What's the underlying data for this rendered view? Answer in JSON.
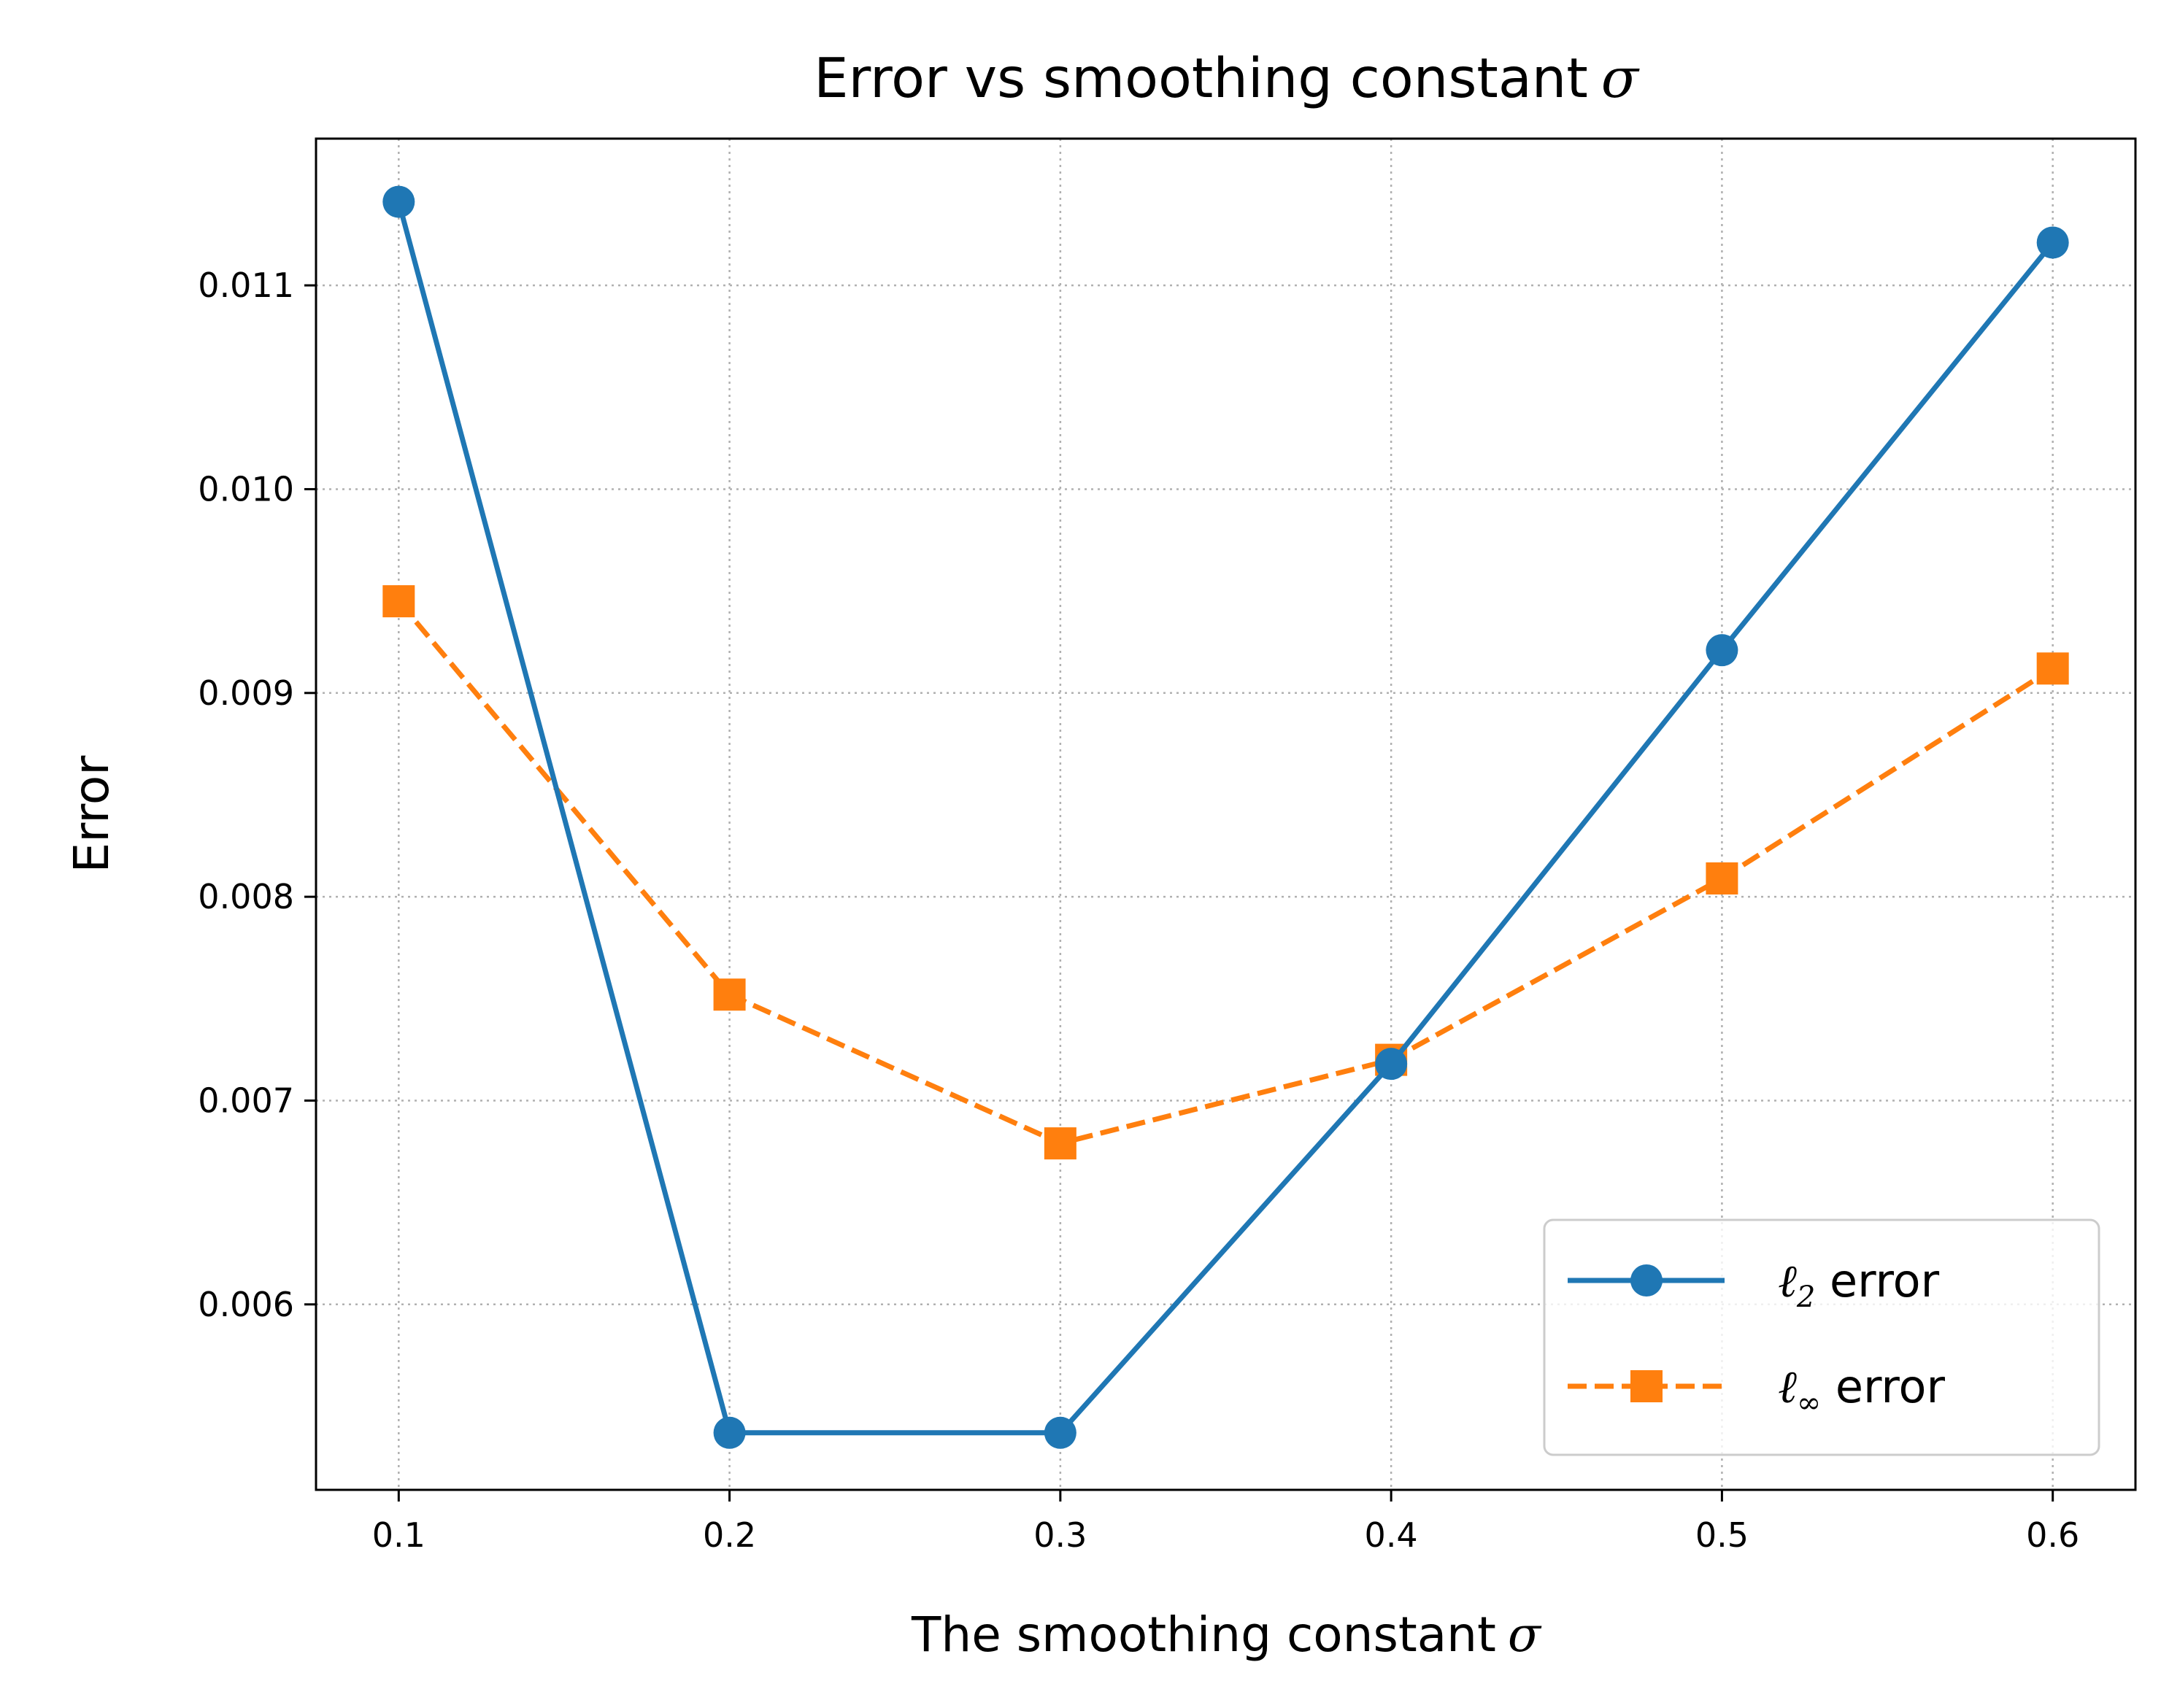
{
  "chart_data": {
    "type": "line",
    "title": "Error vs smoothing constant",
    "title_symbol": "σ",
    "xlabel": "The smoothing constant",
    "xlabel_symbol": "σ",
    "ylabel": "Error",
    "x": [
      0.1,
      0.2,
      0.3,
      0.4,
      0.5,
      0.6
    ],
    "xlim": [
      0.075,
      0.625
    ],
    "ylim": [
      0.00509,
      0.01172
    ],
    "xticks": [
      0.1,
      0.2,
      0.3,
      0.4,
      0.5,
      0.6
    ],
    "xtick_labels": [
      "0.1",
      "0.2",
      "0.3",
      "0.4",
      "0.5",
      "0.6"
    ],
    "yticks": [
      0.006,
      0.007,
      0.008,
      0.009,
      0.01,
      0.011
    ],
    "ytick_labels": [
      "0.006",
      "0.007",
      "0.008",
      "0.009",
      "0.010",
      "0.011"
    ],
    "grid": true,
    "legend_position": "lower-right",
    "series": [
      {
        "name": "ℓ2 error",
        "legend_symbol": "ℓ",
        "legend_sub": "2",
        "legend_suffix": " error",
        "color": "#1f77b4",
        "line_style": "solid",
        "marker": "circle",
        "values": [
          0.01141,
          0.00537,
          0.00537,
          0.00718,
          0.00921,
          0.01121
        ]
      },
      {
        "name": "ℓ∞ error",
        "legend_symbol": "ℓ",
        "legend_sub": "∞",
        "legend_suffix": " error",
        "color": "#ff7f0e",
        "line_style": "dashed",
        "marker": "square",
        "values": [
          0.00945,
          0.00752,
          0.00679,
          0.0072,
          0.00809,
          0.00912
        ]
      }
    ]
  }
}
